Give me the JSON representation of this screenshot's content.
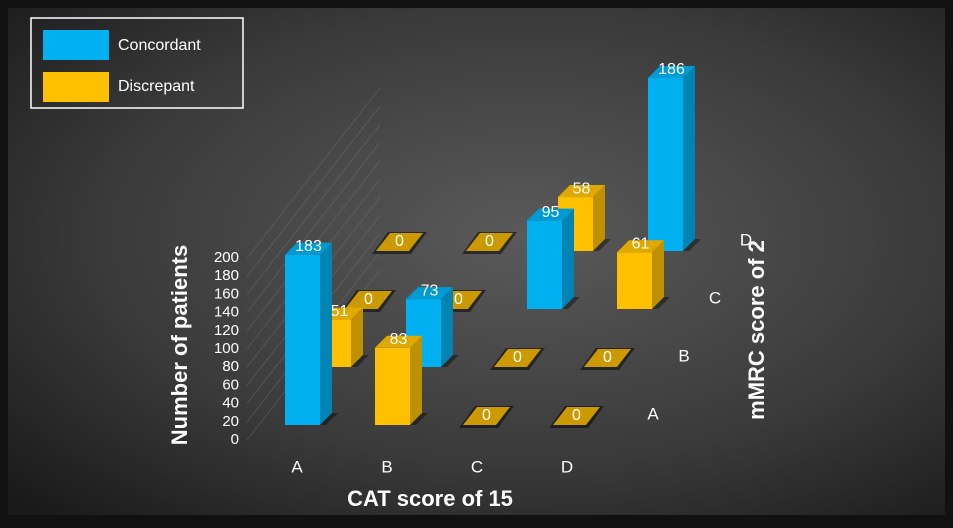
{
  "chart_data": {
    "type": "bar3d",
    "xlabel": "CAT score of 15",
    "ylabel": "Number of patients",
    "zlabel": "mMRC score of 2",
    "categories": [
      "A",
      "B",
      "C",
      "D"
    ],
    "depth_categories": [
      "A",
      "B",
      "C",
      "D"
    ],
    "series": [
      {
        "name": "Concordant",
        "color": "#00b0f0",
        "values": [
          [
            183,
            null,
            null,
            null
          ],
          [
            null,
            73,
            null,
            null
          ],
          [
            null,
            null,
            95,
            null
          ],
          [
            null,
            null,
            null,
            186
          ]
        ]
      },
      {
        "name": "Discrepant",
        "color": "#ffc000",
        "values": [
          [
            null,
            83,
            0,
            0
          ],
          [
            51,
            null,
            0,
            0
          ],
          [
            0,
            0,
            null,
            61
          ],
          [
            0,
            0,
            58,
            null
          ]
        ]
      }
    ],
    "ylim": [
      0,
      200
    ],
    "yticks": [
      0,
      20,
      40,
      60,
      80,
      100,
      120,
      140,
      160,
      180,
      200
    ],
    "legend": "upper left"
  }
}
